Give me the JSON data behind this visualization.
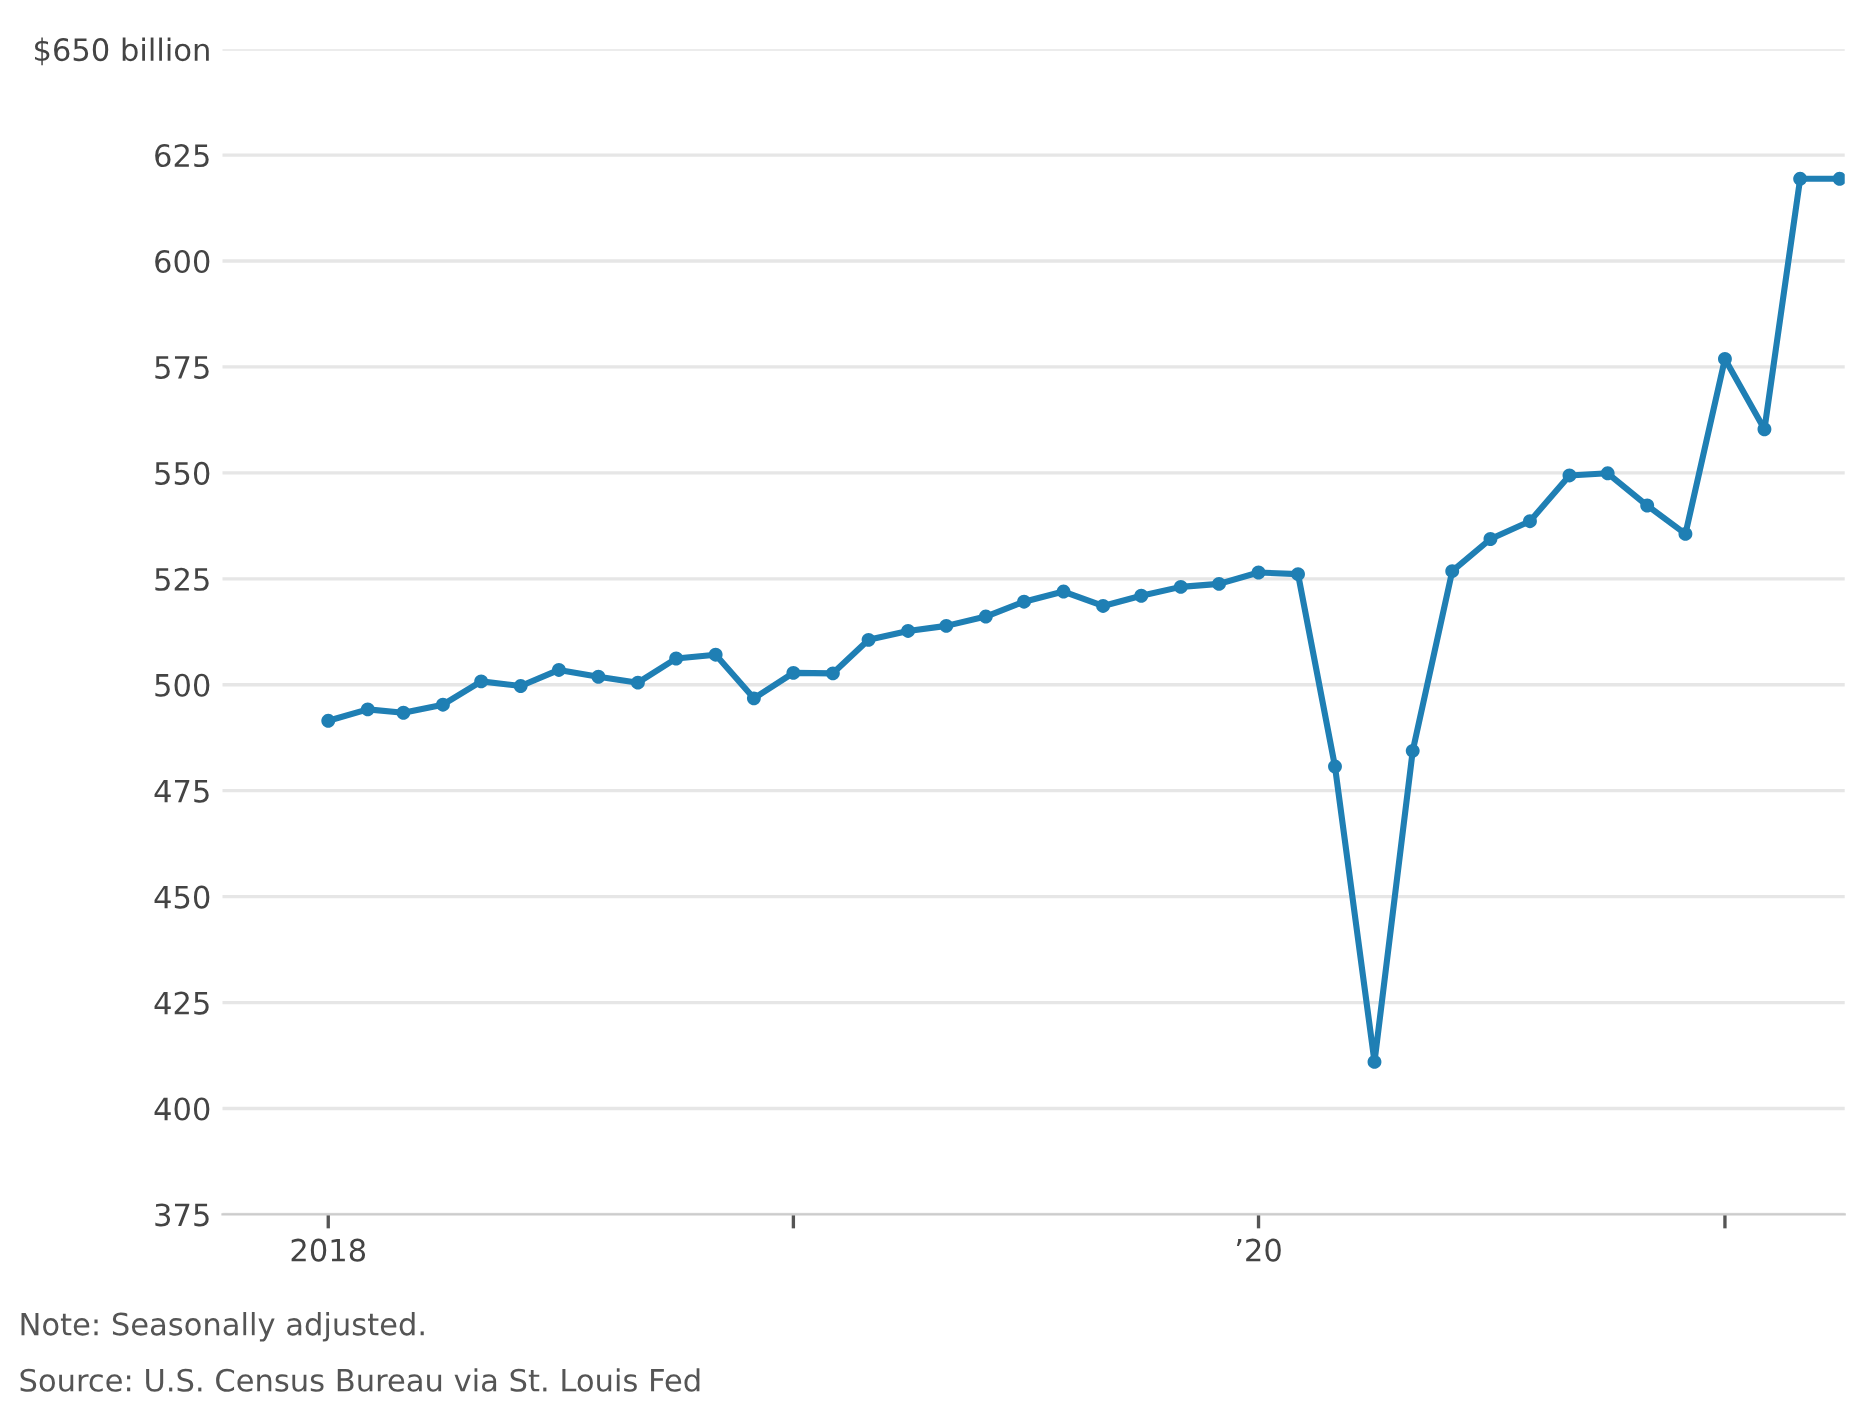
{
  "chart_data": {
    "type": "line",
    "x": [
      "2018-01",
      "2018-02",
      "2018-03",
      "2018-04",
      "2018-05",
      "2018-06",
      "2018-07",
      "2018-08",
      "2018-09",
      "2018-10",
      "2018-11",
      "2018-12",
      "2019-01",
      "2019-02",
      "2019-03",
      "2019-04",
      "2019-05",
      "2019-06",
      "2019-07",
      "2019-08",
      "2019-09",
      "2019-10",
      "2019-11",
      "2019-12",
      "2020-01",
      "2020-02",
      "2020-03",
      "2020-04",
      "2020-05",
      "2020-06",
      "2020-07",
      "2020-08",
      "2020-09",
      "2020-10",
      "2020-11",
      "2020-12",
      "2021-01",
      "2021-02",
      "2021-03",
      "2021-04"
    ],
    "series": [
      {
        "color": "#1f7fb4",
        "values": [
          491.5,
          494.2,
          493.4,
          495.3,
          500.8,
          499.7,
          503.5,
          501.9,
          500.5,
          506.2,
          507.1,
          496.8,
          502.8,
          502.7,
          510.6,
          512.7,
          513.9,
          516.1,
          519.6,
          522.0,
          518.6,
          521.0,
          523.1,
          523.8,
          526.5,
          526.1,
          480.7,
          411,
          484.4,
          526.8,
          534.4,
          538.6,
          549.4,
          549.9,
          542.3,
          535.6,
          576.9,
          560.3,
          619.4,
          619.4
        ]
      }
    ],
    "xlim": [
      "2017-10-10",
      "2021-04-05"
    ],
    "xticks": [
      {
        "value": "2018-01",
        "label": "2018"
      },
      {
        "value": "2019-01",
        "label": null
      },
      {
        "value": "2020-01",
        "label": "’20"
      },
      {
        "value": "2021-01",
        "label": null
      }
    ],
    "ylim": [
      375,
      650
    ],
    "yticks": [
      {
        "value": 650,
        "label": "$650 billion"
      },
      625,
      600,
      575,
      550,
      525,
      500,
      475,
      450,
      425,
      400,
      375
    ],
    "grid": "y",
    "marker": "circle",
    "line_style": "solid",
    "annotations": [
      "Note: Seasonally adjusted.",
      "Source: U.S. Census Bureau via St. Louis Fed"
    ]
  }
}
